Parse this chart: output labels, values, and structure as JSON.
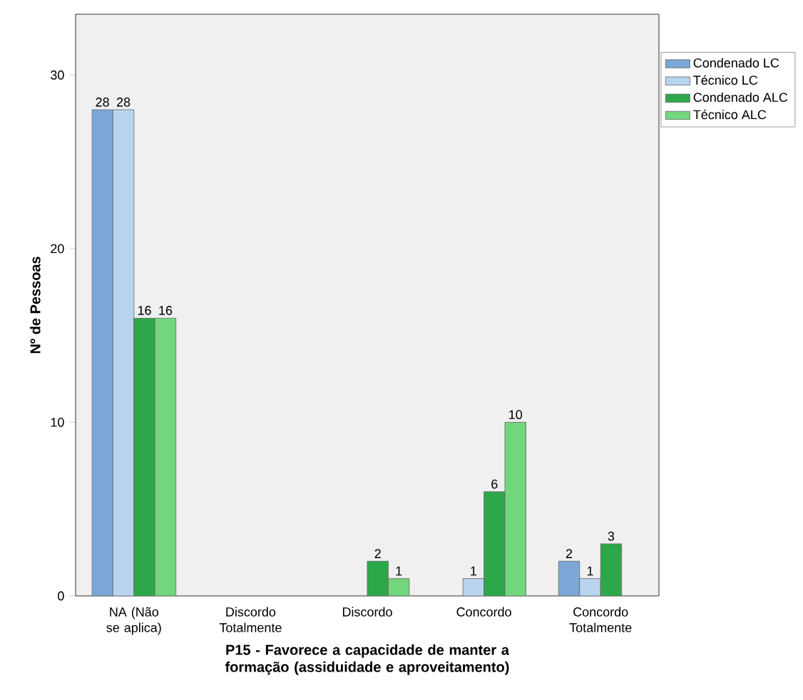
{
  "chart_data": {
    "type": "bar",
    "xlabel": "P15 - Favorece a capacidade de manter a formação (assiduidade e aproveitamento)",
    "ylabel": "Nº de Pessoas",
    "categories": [
      "NA (Não se aplica)",
      "Discordo Totalmente",
      "Discordo",
      "Concordo",
      "Concordo Totalmente"
    ],
    "series": [
      {
        "name": "Condenado LC",
        "color": "#7ba6d6",
        "values": [
          28,
          null,
          null,
          null,
          2
        ],
        "value_labels": [
          "28",
          null,
          null,
          null,
          "2"
        ]
      },
      {
        "name": "Técnico LC",
        "color": "#b9d4ef",
        "values": [
          28,
          null,
          null,
          1,
          1
        ],
        "value_labels": [
          "28",
          null,
          null,
          "1",
          "1"
        ]
      },
      {
        "name": "Condenado ALC",
        "color": "#2ca84a",
        "values": [
          16,
          null,
          2,
          6,
          3
        ],
        "value_labels": [
          "16",
          null,
          "2",
          "6",
          "3"
        ]
      },
      {
        "name": "Técnico ALC",
        "color": "#72d67c",
        "values": [
          16,
          null,
          1,
          10,
          null
        ],
        "value_labels": [
          "16",
          null,
          "1",
          "10",
          null
        ]
      }
    ],
    "ylim": [
      0,
      33.5
    ],
    "yticks": [
      0,
      10,
      20,
      30
    ],
    "legend": "top right",
    "grid": false
  }
}
